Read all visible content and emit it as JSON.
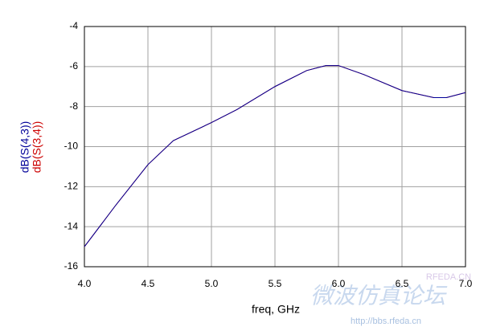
{
  "chart_data": {
    "type": "line",
    "xlabel": "freq, GHz",
    "x": [
      4.0,
      4.25,
      4.5,
      4.7,
      5.0,
      5.2,
      5.5,
      5.75,
      5.9,
      6.0,
      6.2,
      6.5,
      6.75,
      6.85,
      7.0
    ],
    "series": [
      {
        "name": "dB(S(3,4))",
        "color": "#cc0000",
        "values": [
          -15,
          -12.9,
          -10.9,
          -9.7,
          -8.8,
          -8.15,
          -7.0,
          -6.2,
          -5.95,
          -5.95,
          -6.4,
          -7.2,
          -7.55,
          -7.55,
          -7.3
        ]
      },
      {
        "name": "dB(S(4,3))",
        "color": "#000099",
        "values": [
          -15,
          -12.9,
          -10.9,
          -9.7,
          -8.8,
          -8.15,
          -7.0,
          -6.2,
          -5.95,
          -5.95,
          -6.4,
          -7.2,
          -7.55,
          -7.55,
          -7.3
        ]
      }
    ],
    "xlim": [
      4.0,
      7.0
    ],
    "xticks": [
      {
        "value": 4.0,
        "label": "4.0"
      },
      4.5,
      {
        "value": 5.0,
        "label": "5.0"
      },
      5.5,
      {
        "value": 6.0,
        "label": "6.0"
      },
      6.5,
      {
        "value": 7.0,
        "label": "7.0"
      }
    ],
    "ylim": [
      -16,
      -4
    ],
    "yticks": [
      -16,
      -14,
      -12,
      -10,
      -8,
      -6,
      -4
    ],
    "grid": true,
    "watermark": [
      "RFEDA.CN",
      "微波仿真论坛",
      "http://bbs.rfeda.cn"
    ]
  }
}
